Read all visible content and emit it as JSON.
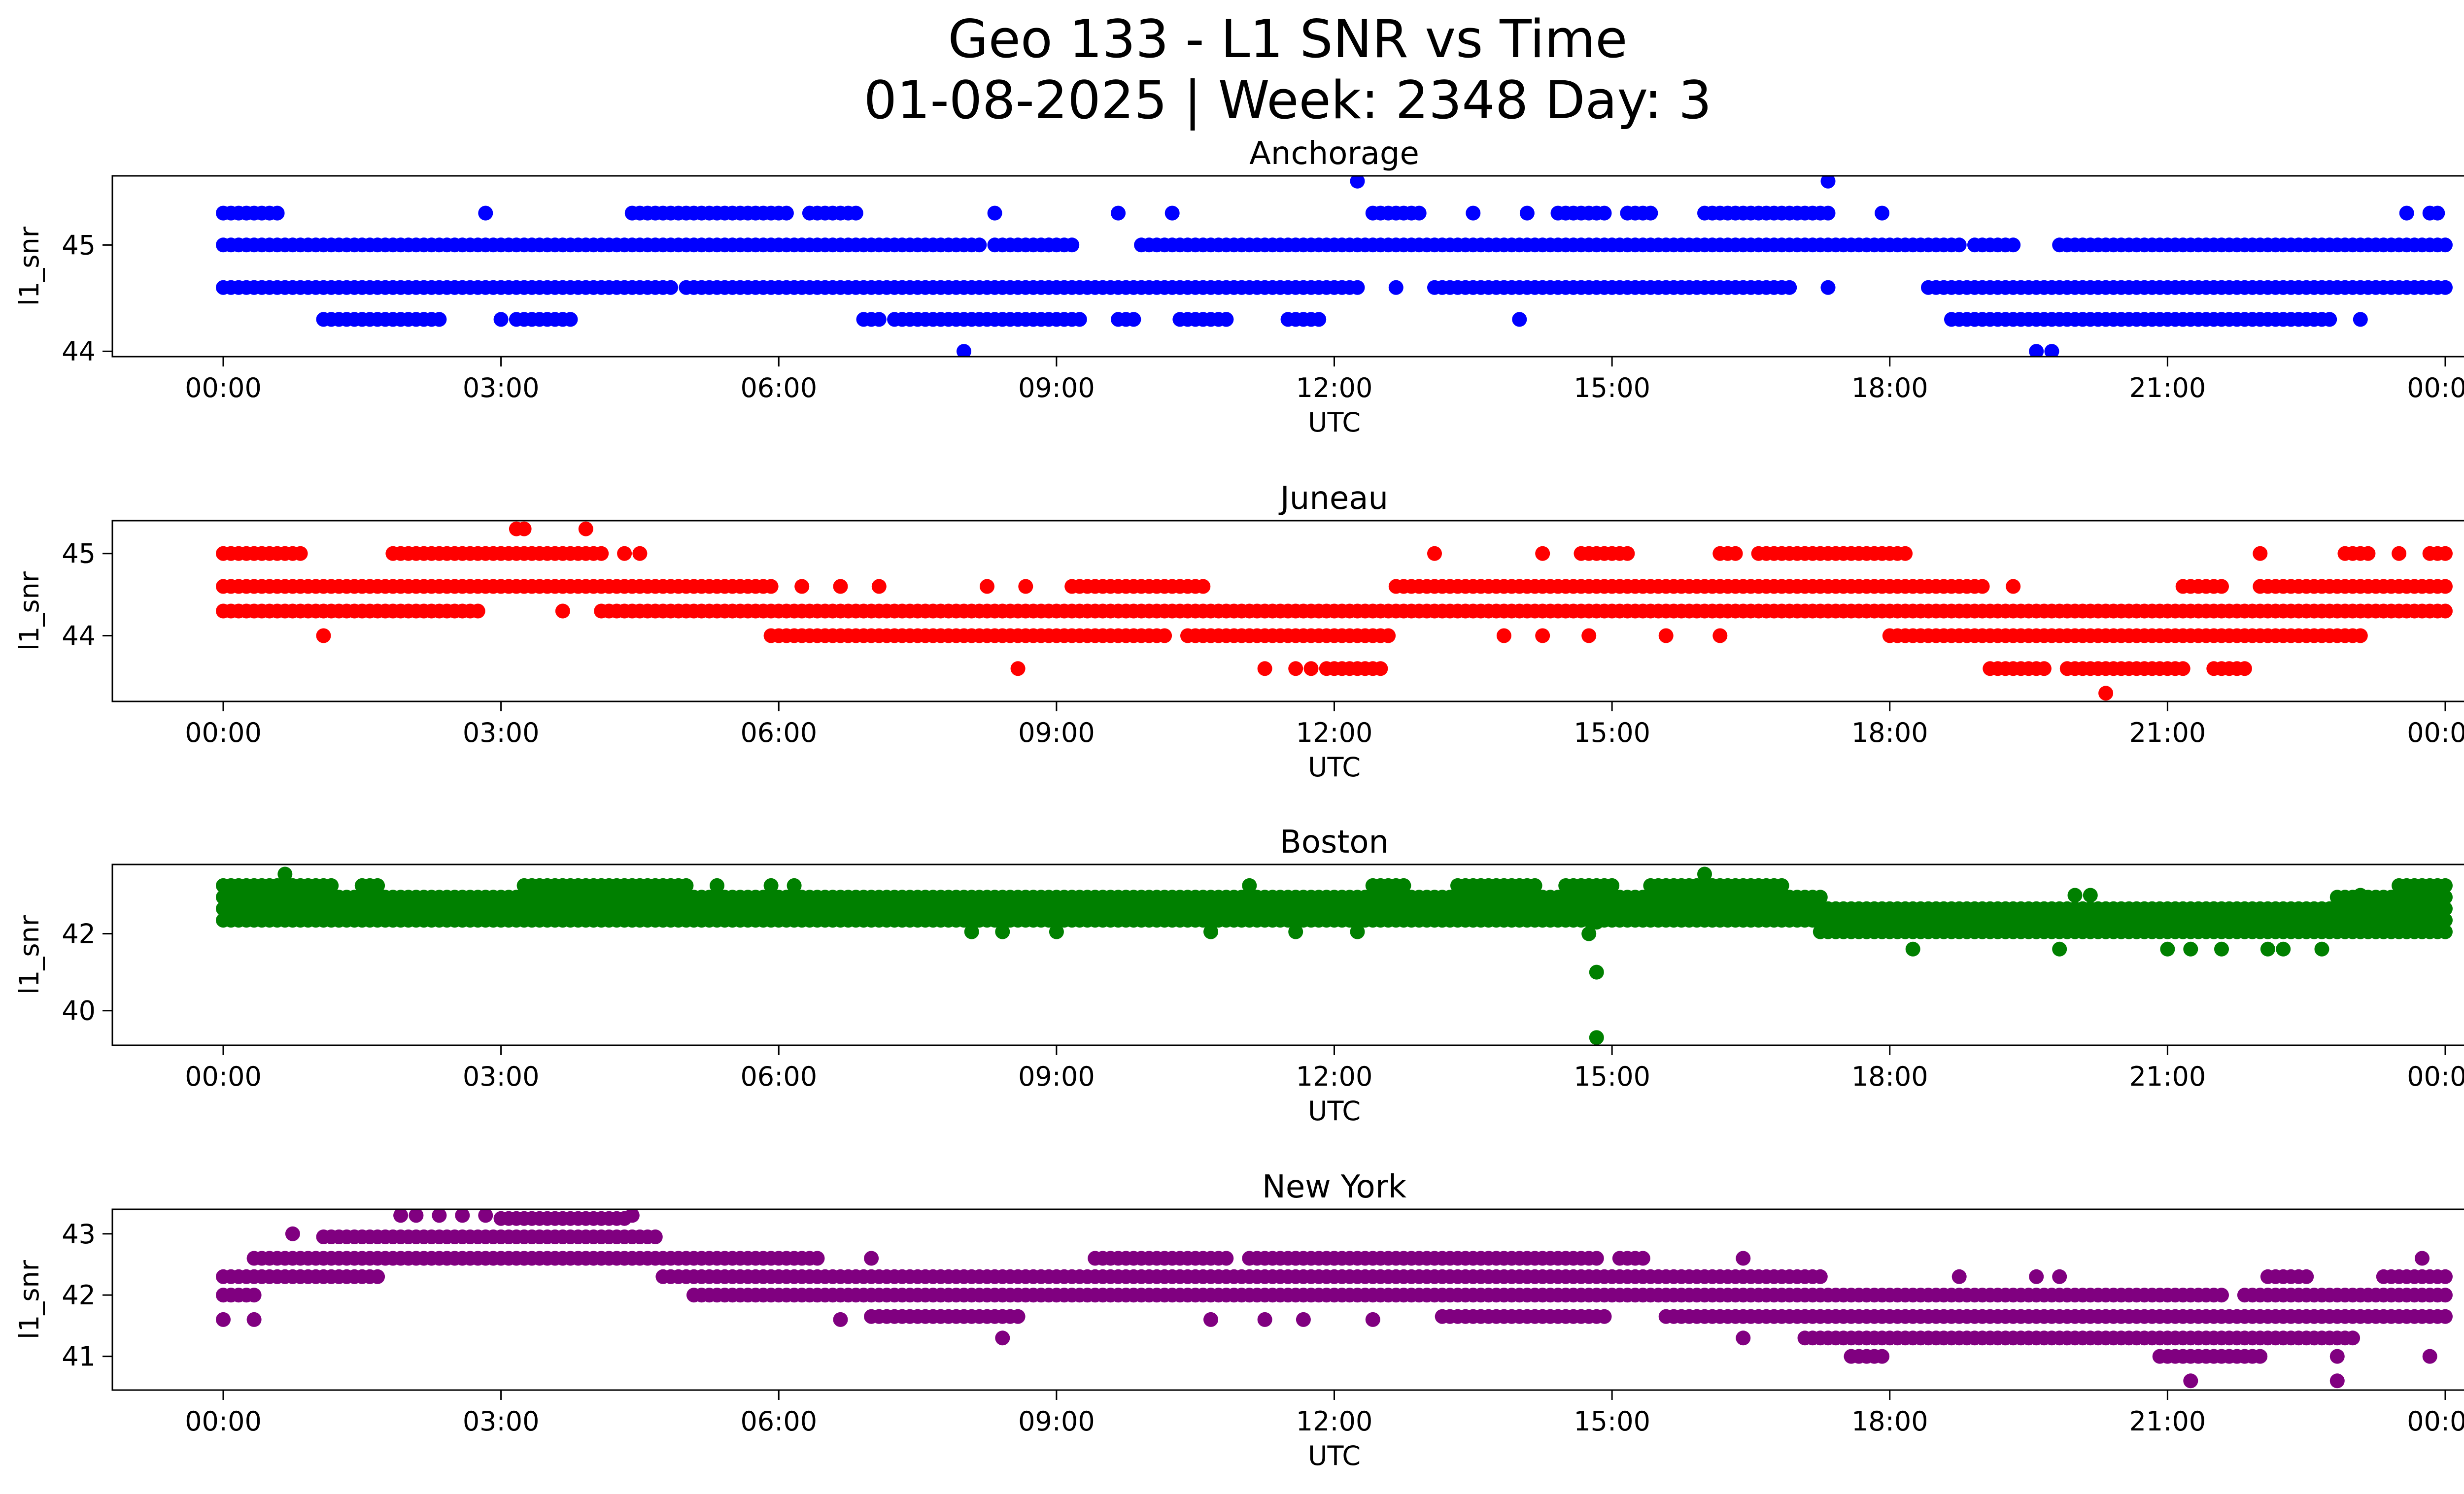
{
  "figure": {
    "title_line1": "Geo 133 - L1 SNR vs Time",
    "title_line2": "01-08-2025 | Week: 2348 Day: 3"
  },
  "chart_data": [
    {
      "type": "scatter",
      "title": "Anchorage",
      "xlabel": "UTC",
      "ylabel": "l1_snr",
      "color": "#0000ff",
      "xlim": [
        "00:00",
        "24:00"
      ],
      "x_ticks": [
        "00:00",
        "03:00",
        "06:00",
        "09:00",
        "12:00",
        "15:00",
        "18:00",
        "21:00",
        "00:00"
      ],
      "ylim": [
        43.95,
        45.65
      ],
      "y_ticks": [
        44,
        45
      ],
      "series": [
        {
          "y": 45.0,
          "ranges": [
            [
              "00:00",
              "08:10"
            ],
            [
              "08:20",
              "09:10"
            ],
            [
              "09:55",
              "18:45"
            ],
            [
              "18:55",
              "19:15"
            ],
            [
              "19:50",
              "24:00"
            ]
          ]
        },
        {
          "y": 44.6,
          "ranges": [
            [
              "00:00",
              "04:50"
            ],
            [
              "05:00",
              "12:15"
            ],
            [
              "13:05",
              "16:35"
            ],
            [
              "16:40",
              "16:55"
            ],
            [
              "18:25",
              "24:00"
            ]
          ]
        },
        {
          "y": 44.3,
          "ranges": [
            [
              "01:05",
              "02:20"
            ],
            [
              "03:10",
              "03:45"
            ],
            [
              "06:55",
              "07:05"
            ],
            [
              "07:15",
              "09:15"
            ],
            [
              "09:40",
              "09:50"
            ],
            [
              "10:20",
              "10:50"
            ],
            [
              "11:30",
              "11:50"
            ],
            [
              "18:40",
              "18:55"
            ],
            [
              "18:55",
              "22:45"
            ]
          ]
        },
        {
          "y": 45.3,
          "ranges": [
            [
              "00:00",
              "00:35"
            ],
            [
              "04:25",
              "06:05"
            ],
            [
              "06:20",
              "06:50"
            ],
            [
              "12:25",
              "12:55"
            ],
            [
              "14:25",
              "14:55"
            ],
            [
              "15:10",
              "15:25"
            ],
            [
              "16:00",
              "17:20"
            ],
            [
              "23:50",
              "23:55"
            ]
          ]
        }
      ],
      "points": [
        [
          "02:50",
          45.3
        ],
        [
          "09:40",
          45.3
        ],
        [
          "10:15",
          45.3
        ],
        [
          "08:20",
          45.3
        ],
        [
          "13:30",
          45.3
        ],
        [
          "14:05",
          45.3
        ],
        [
          "17:55",
          45.3
        ],
        [
          "23:35",
          45.3
        ],
        [
          "12:15",
          45.6
        ],
        [
          "17:20",
          45.6
        ],
        [
          "03:00",
          44.3
        ],
        [
          "14:00",
          44.3
        ],
        [
          "10:50",
          44.3
        ],
        [
          "23:05",
          44.3
        ],
        [
          "12:40",
          44.6
        ],
        [
          "17:20",
          44.6
        ],
        [
          "08:00",
          44.0
        ],
        [
          "19:35",
          44.0
        ],
        [
          "19:45",
          44.0
        ],
        [
          "08:55",
          45.0
        ],
        [
          "19:20",
          45.0
        ]
      ]
    },
    {
      "type": "scatter",
      "title": "Juneau",
      "xlabel": "UTC",
      "ylabel": "l1_snr",
      "color": "#ff0000",
      "xlim": [
        "00:00",
        "24:00"
      ],
      "x_ticks": [
        "00:00",
        "03:00",
        "06:00",
        "09:00",
        "12:00",
        "15:00",
        "18:00",
        "21:00",
        "00:00"
      ],
      "ylim": [
        43.2,
        45.4
      ],
      "y_ticks": [
        44,
        45
      ],
      "series": [
        {
          "y": 44.6,
          "ranges": [
            [
              "00:00",
              "05:55"
            ],
            [
              "09:10",
              "10:35"
            ],
            [
              "12:40",
              "18:55"
            ],
            [
              "21:10",
              "21:35"
            ],
            [
              "22:00",
              "24:00"
            ]
          ]
        },
        {
          "y": 44.3,
          "ranges": [
            [
              "00:00",
              "02:40"
            ],
            [
              "04:05",
              "24:00"
            ]
          ]
        },
        {
          "y": 44.0,
          "ranges": [
            [
              "05:55",
              "10:10"
            ],
            [
              "10:25",
              "10:40"
            ],
            [
              "10:40",
              "12:35"
            ],
            [
              "18:00",
              "18:45"
            ],
            [
              "18:45",
              "23:05"
            ]
          ]
        },
        {
          "y": 45.0,
          "ranges": [
            [
              "00:00",
              "00:50"
            ],
            [
              "01:50",
              "04:05"
            ],
            [
              "14:40",
              "15:10"
            ],
            [
              "16:10",
              "16:20"
            ],
            [
              "16:35",
              "17:45"
            ],
            [
              "17:50",
              "18:10"
            ],
            [
              "22:55",
              "23:10"
            ],
            [
              "23:50",
              "24:00"
            ]
          ]
        },
        {
          "y": 43.6,
          "ranges": [
            [
              "11:55",
              "12:30"
            ],
            [
              "19:05",
              "19:40"
            ],
            [
              "19:55",
              "21:10"
            ],
            [
              "21:30",
              "21:50"
            ]
          ]
        }
      ],
      "points": [
        [
          "03:10",
          45.3
        ],
        [
          "03:15",
          45.3
        ],
        [
          "03:55",
          45.3
        ],
        [
          "01:05",
          44.0
        ],
        [
          "02:45",
          44.3
        ],
        [
          "03:40",
          44.3
        ],
        [
          "04:20",
          45.0
        ],
        [
          "04:30",
          45.0
        ],
        [
          "13:05",
          45.0
        ],
        [
          "14:15",
          45.0
        ],
        [
          "22:00",
          45.0
        ],
        [
          "23:30",
          45.0
        ],
        [
          "08:35",
          43.6
        ],
        [
          "11:15",
          43.6
        ],
        [
          "11:35",
          43.6
        ],
        [
          "11:45",
          43.6
        ],
        [
          "20:20",
          43.3
        ],
        [
          "06:15",
          44.6
        ],
        [
          "06:40",
          44.6
        ],
        [
          "07:05",
          44.6
        ],
        [
          "08:15",
          44.6
        ],
        [
          "08:40",
          44.6
        ],
        [
          "19:00",
          44.6
        ],
        [
          "19:20",
          44.6
        ],
        [
          "13:50",
          44.0
        ],
        [
          "14:15",
          44.0
        ],
        [
          "14:45",
          44.0
        ],
        [
          "15:35",
          44.0
        ],
        [
          "16:10",
          44.0
        ],
        [
          "11:05",
          44.0
        ]
      ]
    },
    {
      "type": "scatter",
      "title": "Boston",
      "xlabel": "UTC",
      "ylabel": "l1_snr",
      "color": "#008000",
      "xlim": [
        "00:00",
        "24:00"
      ],
      "x_ticks": [
        "00:00",
        "03:00",
        "06:00",
        "09:00",
        "12:00",
        "15:00",
        "18:00",
        "21:00",
        "00:00"
      ],
      "ylim": [
        39.1,
        43.8
      ],
      "y_ticks": [
        40,
        42
      ],
      "series": [
        {
          "y": 42.95,
          "ranges": [
            [
              "00:00",
              "17:15"
            ],
            [
              "22:50",
              "24:00"
            ]
          ]
        },
        {
          "y": 42.65,
          "ranges": [
            [
              "00:00",
              "24:00"
            ]
          ]
        },
        {
          "y": 42.35,
          "ranges": [
            [
              "00:00",
              "24:00"
            ]
          ]
        },
        {
          "y": 42.05,
          "ranges": [
            [
              "17:15",
              "24:00"
            ]
          ]
        },
        {
          "y": 43.25,
          "ranges": [
            [
              "00:00",
              "01:10"
            ],
            [
              "01:30",
              "01:40"
            ],
            [
              "03:15",
              "05:00"
            ],
            [
              "12:30",
              "12:45"
            ],
            [
              "13:20",
              "14:10"
            ],
            [
              "14:30",
              "15:00"
            ],
            [
              "15:25",
              "16:50"
            ],
            [
              "23:30",
              "24:00"
            ]
          ]
        }
      ],
      "points": [
        [
          "00:40",
          43.55
        ],
        [
          "16:00",
          43.55
        ],
        [
          "01:15",
          42.35
        ],
        [
          "03:40",
          43.25
        ],
        [
          "05:20",
          43.25
        ],
        [
          "05:55",
          43.25
        ],
        [
          "06:10",
          43.25
        ],
        [
          "11:05",
          43.25
        ],
        [
          "12:25",
          43.25
        ],
        [
          "14:45",
          42.0
        ],
        [
          "14:50",
          42.3
        ],
        [
          "14:50",
          41.0
        ],
        [
          "14:50",
          39.3
        ],
        [
          "08:05",
          42.05
        ],
        [
          "08:25",
          42.05
        ],
        [
          "09:00",
          42.05
        ],
        [
          "10:40",
          42.05
        ],
        [
          "11:35",
          42.05
        ],
        [
          "12:15",
          42.05
        ],
        [
          "18:15",
          41.6
        ],
        [
          "19:50",
          41.6
        ],
        [
          "21:00",
          41.6
        ],
        [
          "21:15",
          41.6
        ],
        [
          "21:35",
          41.6
        ],
        [
          "22:05",
          41.6
        ],
        [
          "22:15",
          41.6
        ],
        [
          "22:40",
          41.6
        ],
        [
          "20:00",
          43.0
        ],
        [
          "20:10",
          43.0
        ],
        [
          "21:30",
          42.65
        ],
        [
          "23:05",
          43.0
        ]
      ]
    },
    {
      "type": "scatter",
      "title": "New York",
      "xlabel": "UTC",
      "ylabel": "l1_snr",
      "color": "#800080",
      "xlim": [
        "00:00",
        "24:00"
      ],
      "x_ticks": [
        "00:00",
        "03:00",
        "06:00",
        "09:00",
        "12:00",
        "15:00",
        "18:00",
        "21:00",
        "00:00"
      ],
      "ylim": [
        40.45,
        43.4
      ],
      "y_ticks": [
        41,
        42,
        43
      ],
      "series": [
        {
          "y": 42.3,
          "ranges": [
            [
              "00:00",
              "01:40"
            ],
            [
              "04:45",
              "17:15"
            ],
            [
              "22:05",
              "22:30"
            ],
            [
              "23:20",
              "24:00"
            ]
          ]
        },
        {
          "y": 42.6,
          "ranges": [
            [
              "00:20",
              "04:45"
            ],
            [
              "04:50",
              "06:25"
            ],
            [
              "09:25",
              "10:50"
            ],
            [
              "11:05",
              "12:00"
            ],
            [
              "12:00",
              "14:50"
            ],
            [
              "15:05",
              "15:20"
            ]
          ]
        },
        {
          "y": 42.0,
          "ranges": [
            [
              "00:00",
              "00:20"
            ],
            [
              "05:10",
              "17:25"
            ],
            [
              "17:30",
              "21:35"
            ],
            [
              "21:50",
              "24:00"
            ]
          ]
        },
        {
          "y": 41.65,
          "ranges": [
            [
              "07:00",
              "08:35"
            ],
            [
              "13:10",
              "14:55"
            ],
            [
              "15:35",
              "21:20"
            ],
            [
              "21:25",
              "24:00"
            ]
          ]
        },
        {
          "y": 41.3,
          "ranges": [
            [
              "17:05",
              "21:40"
            ],
            [
              "21:45",
              "23:00"
            ]
          ]
        },
        {
          "y": 42.95,
          "ranges": [
            [
              "01:05",
              "04:40"
            ]
          ]
        },
        {
          "y": 43.25,
          "ranges": [
            [
              "03:00",
              "04:20"
            ]
          ]
        },
        {
          "y": 41.0,
          "ranges": [
            [
              "17:35",
              "17:55"
            ],
            [
              "20:55",
              "21:10"
            ],
            [
              "21:15",
              "22:00"
            ]
          ]
        }
      ],
      "points": [
        [
          "00:00",
          41.6
        ],
        [
          "00:20",
          41.6
        ],
        [
          "00:45",
          43.0
        ],
        [
          "01:55",
          43.3
        ],
        [
          "02:05",
          43.3
        ],
        [
          "02:20",
          43.3
        ],
        [
          "02:35",
          43.3
        ],
        [
          "02:50",
          43.3
        ],
        [
          "04:25",
          43.3
        ],
        [
          "05:05",
          42.0
        ],
        [
          "06:40",
          41.6
        ],
        [
          "07:00",
          42.6
        ],
        [
          "08:25",
          41.3
        ],
        [
          "10:40",
          41.6
        ],
        [
          "11:15",
          41.6
        ],
        [
          "11:40",
          41.6
        ],
        [
          "11:35",
          42.6
        ],
        [
          "12:25",
          41.6
        ],
        [
          "16:25",
          41.3
        ],
        [
          "21:15",
          40.6
        ],
        [
          "22:50",
          40.6
        ],
        [
          "22:50",
          41.0
        ],
        [
          "23:50",
          41.0
        ],
        [
          "23:45",
          42.6
        ],
        [
          "18:45",
          42.3
        ],
        [
          "19:35",
          42.3
        ],
        [
          "19:50",
          42.3
        ],
        [
          "16:25",
          42.6
        ]
      ]
    }
  ]
}
